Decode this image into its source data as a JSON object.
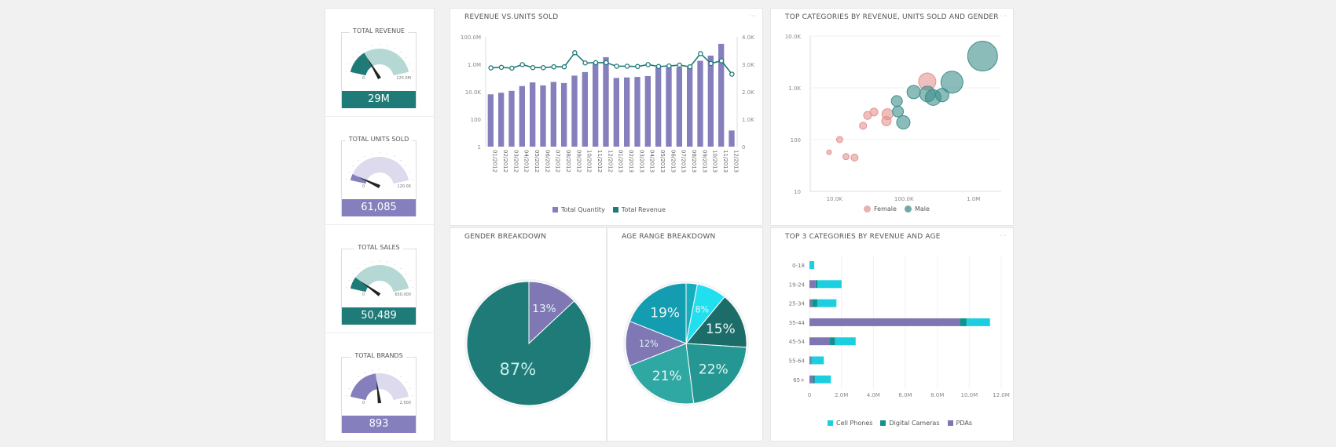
{
  "colors": {
    "teal": "#1e7b78",
    "purple": "#8580bd",
    "teal_light": "#b5d8d5",
    "purple_light": "#dcdaec",
    "female": "#e39590",
    "male": "#3d8f8b",
    "cell": "#1ccfe0",
    "digital": "#14918f",
    "pda": "#7e76b3"
  },
  "kpis": [
    {
      "title": "TOTAL REVENUE",
      "value": "29M",
      "min": "0",
      "max": "125.0M",
      "fraction": 0.3,
      "theme": "teal"
    },
    {
      "title": "TOTAL UNITS SOLD",
      "value": "61,085",
      "min": "0",
      "max": "120.0K",
      "fraction": 0.08,
      "theme": "purple"
    },
    {
      "title": "TOTAL SALES",
      "value": "50,489",
      "min": "0",
      "max": "650,000",
      "fraction": 0.15,
      "theme": "teal"
    },
    {
      "title": "TOTAL BRANDS",
      "value": "893",
      "min": "0",
      "max": "2,000",
      "fraction": 0.45,
      "theme": "purple"
    }
  ],
  "chart_data": [
    {
      "id": "revenue-vs-units",
      "type": "bar+line",
      "title": "REVENUE vs.UNITS SOLD",
      "categories": [
        "01/2012",
        "02/2012",
        "03/2012",
        "04/2012",
        "05/2012",
        "06/2012",
        "07/2012",
        "08/2012",
        "09/2012",
        "10/2012",
        "11/2012",
        "12/2012",
        "01/2013",
        "02/2013",
        "03/2013",
        "04/2013",
        "05/2013",
        "06/2013",
        "07/2013",
        "08/2013",
        "09/2013",
        "10/2013",
        "11/2013",
        "12/2013"
      ],
      "left_axis": {
        "scale": "log",
        "range": [
          1,
          100000000
        ],
        "ticks": [
          "1",
          "100",
          "10.0K",
          "1.0M",
          "100.0M"
        ]
      },
      "right_axis": {
        "scale": "linear",
        "range": [
          0,
          4000
        ],
        "ticks": [
          "0",
          "1.0K",
          "2.0K",
          "3.0K",
          "4.0K"
        ]
      },
      "series": [
        {
          "name": "Total Quantity",
          "type": "bar",
          "axis": "left",
          "values": [
            6500,
            8500,
            11700,
            26000,
            48000,
            29000,
            52000,
            43000,
            150000,
            273000,
            1070000,
            3300000,
            102000,
            110000,
            120000,
            140000,
            600000,
            600000,
            600000,
            600000,
            1800000,
            4300000,
            31000000,
            15
          ]
        },
        {
          "name": "Total Revenue",
          "type": "line",
          "axis": "right",
          "values": [
            2870,
            2890,
            2860,
            2990,
            2880,
            2880,
            2910,
            2910,
            3420,
            3050,
            3060,
            3060,
            2930,
            2930,
            2920,
            2990,
            2920,
            2940,
            2970,
            2910,
            3390,
            3030,
            3130,
            2640
          ]
        }
      ],
      "legend": "bottom"
    },
    {
      "id": "scatter-gender",
      "type": "scatter",
      "title": "TOP CATEGORIES BY REVENUE, UNITS SOLD AND GENDER",
      "x_axis": {
        "scale": "log",
        "range": [
          4500,
          2500000
        ],
        "ticks": [
          {
            "v": 10000,
            "label": "10.0K"
          },
          {
            "v": 100000,
            "label": "100.0K"
          },
          {
            "v": 1000000,
            "label": "1.0M"
          }
        ]
      },
      "y_axis": {
        "scale": "log",
        "range": [
          10,
          10000
        ],
        "ticks": [
          {
            "v": 10,
            "label": "10"
          },
          {
            "v": 100,
            "label": "100"
          },
          {
            "v": 1000,
            "label": "1.0K"
          },
          {
            "v": 10000,
            "label": "10.0K"
          }
        ]
      },
      "series": [
        {
          "name": "Female",
          "points": [
            [
              8400,
              57,
              3
            ],
            [
              11900,
              100,
              4
            ],
            [
              14700,
              47,
              4
            ],
            [
              19500,
              45,
              4.5
            ],
            [
              25800,
              185,
              4.5
            ],
            [
              30000,
              293,
              5
            ],
            [
              37000,
              341,
              5
            ],
            [
              58000,
              310,
              7
            ],
            [
              56000,
              228,
              6
            ],
            [
              216000,
              1320,
              11
            ]
          ]
        },
        {
          "name": "Male",
          "points": [
            [
              79000,
              555,
              7
            ],
            [
              82000,
              349,
              7
            ],
            [
              98000,
              215,
              8.5
            ],
            [
              138000,
              830,
              8.5
            ],
            [
              218000,
              760,
              10
            ],
            [
              263000,
              650,
              10
            ],
            [
              355000,
              725,
              8.5
            ],
            [
              490000,
              1290,
              14
            ],
            [
              1350000,
              4100,
              19
            ]
          ]
        }
      ],
      "legend": "bottom"
    },
    {
      "id": "gender-pie",
      "type": "pie",
      "title": "GENDER BREAKDOWN",
      "slices": [
        {
          "value": 13,
          "label": "13%",
          "color": "#7f78b4"
        },
        {
          "value": 87,
          "label": "87%",
          "color": "#1e7b78"
        }
      ]
    },
    {
      "id": "age-pie",
      "type": "pie",
      "title": "AGE RANGE BREAKDOWN",
      "slices": [
        {
          "value": 3,
          "label": "",
          "color": "#15aebe"
        },
        {
          "value": 8,
          "label": "8%",
          "color": "#22dff0"
        },
        {
          "value": 15,
          "label": "15%",
          "color": "#1c6d6a"
        },
        {
          "value": 22,
          "label": "22%",
          "color": "#259792"
        },
        {
          "value": 21,
          "label": "21%",
          "color": "#2fa7a2"
        },
        {
          "value": 12,
          "label": "12%",
          "color": "#7f78b4"
        },
        {
          "value": 19,
          "label": "19%",
          "color": "#149cb0"
        }
      ]
    },
    {
      "id": "age-bars",
      "type": "stacked-bar-horizontal",
      "title": "TOP 3 CATEGORIES BY REVENUE AND AGE",
      "categories": [
        "0-18",
        "19-24",
        "25-34",
        "35-44",
        "45-54",
        "55-64",
        "65+"
      ],
      "x_axis": {
        "range": [
          0,
          12000000
        ],
        "ticks": [
          "0",
          "2.0M",
          "4.0M",
          "6.0M",
          "8.0M",
          "10.0M",
          "12.0M"
        ]
      },
      "series": [
        {
          "name": "PDAs",
          "values": [
            0,
            380000,
            160000,
            9400000,
            1280000,
            80000,
            210000
          ]
        },
        {
          "name": "Digital Cameras",
          "values": [
            0,
            130000,
            330000,
            430000,
            330000,
            50000,
            130000
          ]
        },
        {
          "name": "Cell Phones",
          "values": [
            300000,
            1500000,
            1200000,
            1470000,
            1280000,
            770000,
            1000000
          ]
        }
      ],
      "legend_order": [
        "Cell Phones",
        "Digital Cameras",
        "PDAs"
      ],
      "legend": "bottom"
    }
  ]
}
